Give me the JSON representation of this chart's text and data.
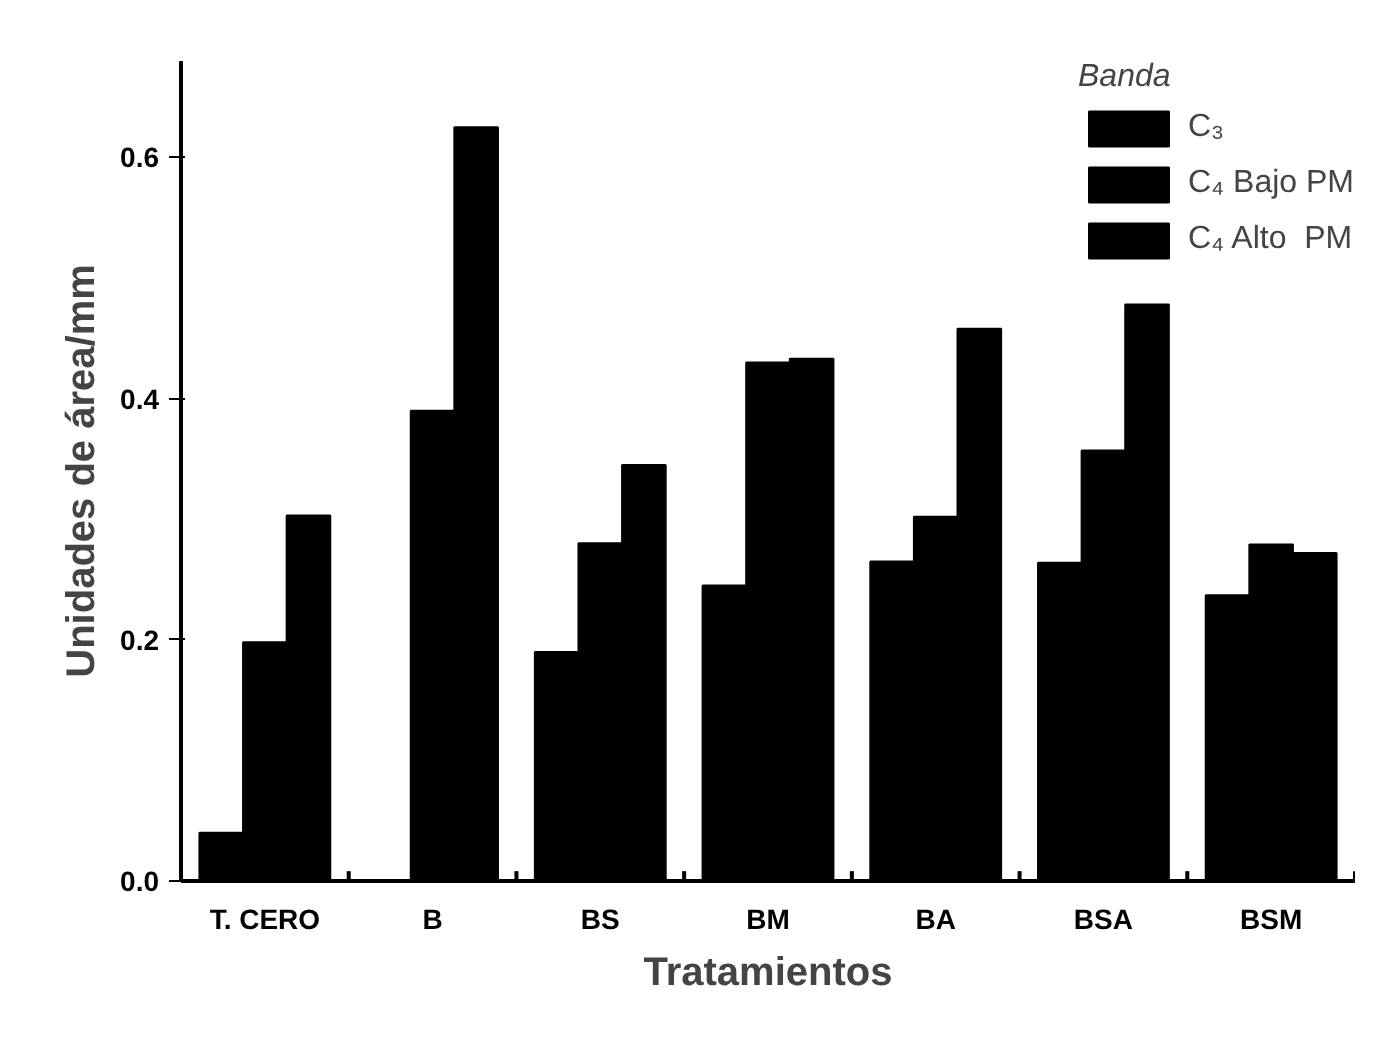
{
  "chart_data": {
    "type": "bar",
    "xlabel": "Tratamientos",
    "ylabel": "Unidades de área/mm",
    "legend_title": "Banda",
    "categories": [
      "T. CERO",
      "B",
      "BS",
      "BM",
      "BA",
      "BSA",
      "BSM"
    ],
    "series": [
      {
        "name": "C₃",
        "color": "#000000",
        "values": [
          0.04,
          null,
          0.19,
          0.245,
          0.265,
          0.264,
          0.237
        ]
      },
      {
        "name": "C₄ Bajo PM",
        "color": "#000000",
        "values": [
          0.198,
          0.39,
          0.28,
          0.43,
          0.302,
          0.357,
          0.279
        ]
      },
      {
        "name": "C₄ Alto  PM",
        "color": "#000000",
        "values": [
          0.303,
          0.625,
          0.345,
          0.433,
          0.458,
          0.478,
          0.272
        ]
      }
    ],
    "ylim": [
      0,
      0.68
    ],
    "yticks": [
      {
        "value": 0,
        "label": "0.0"
      },
      0.2,
      0.4,
      0.6
    ],
    "grid": false,
    "legend": "top right"
  }
}
